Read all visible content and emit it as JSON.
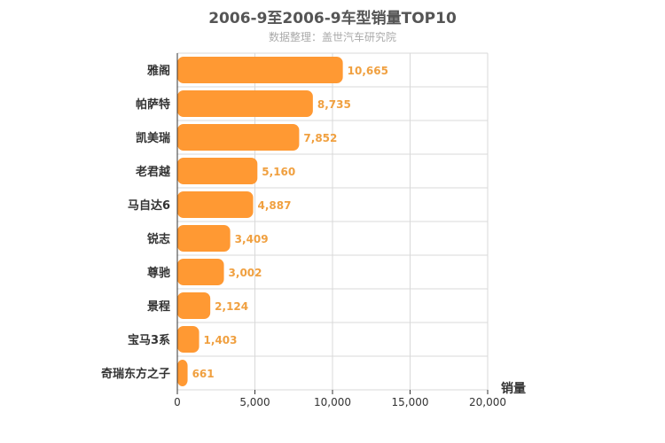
{
  "header": {
    "title": "2006-9至2006-9车型销量TOP10",
    "subtitle": "数据整理：盖世汽车研究院"
  },
  "colors": {
    "bar": "#ff9933",
    "label": "#f0a040",
    "grid": "#d9d9d9"
  },
  "chart_data": {
    "type": "bar",
    "orientation": "horizontal",
    "title": "2006-9至2006-9车型销量TOP10",
    "subtitle": "数据整理：盖世汽车研究院",
    "xlabel": "销量",
    "ylabel": "",
    "categories": [
      "雅阁",
      "帕萨特",
      "凯美瑞",
      "老君越",
      "马自达6",
      "锐志",
      "尊驰",
      "景程",
      "宝马3系",
      "奇瑞东方之子"
    ],
    "values": [
      10665,
      8735,
      7852,
      5160,
      4887,
      3409,
      3002,
      2124,
      1403,
      661
    ],
    "data_labels": [
      "10,665",
      "8,735",
      "7,852",
      "5,160",
      "4,887",
      "3,409",
      "3,002",
      "2,124",
      "1,403",
      "661"
    ],
    "xlim": [
      0,
      20000
    ],
    "ticks": [
      0,
      5000,
      10000,
      15000,
      20000
    ],
    "tick_labels": [
      "0",
      "5,000",
      "10,000",
      "15,000",
      "20,000"
    ],
    "grid": true,
    "legend": "none"
  }
}
